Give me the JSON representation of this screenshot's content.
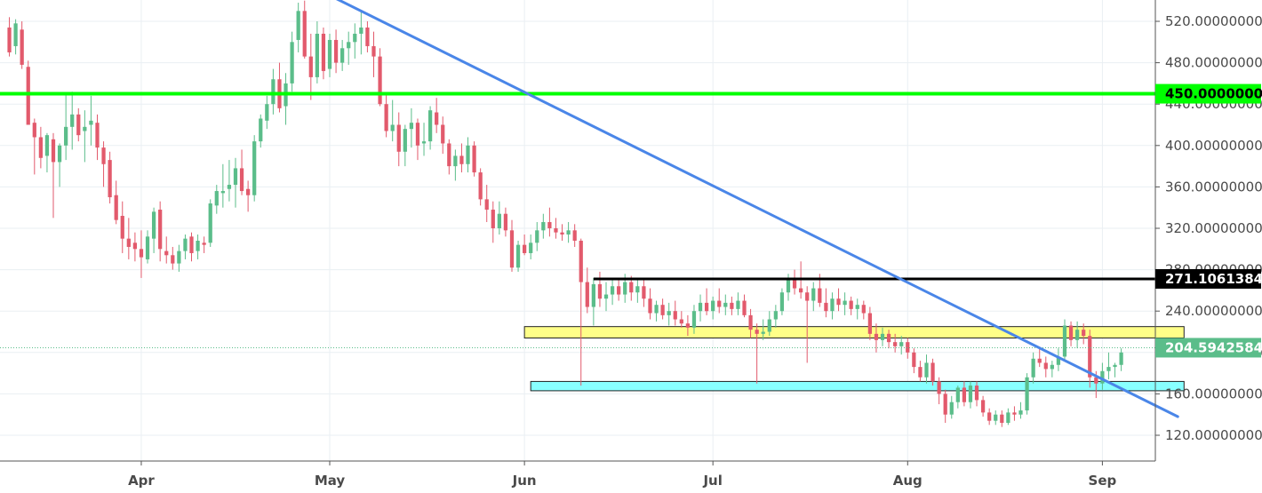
{
  "chart_data": {
    "type": "candlestick",
    "title": "",
    "xlabel": "",
    "ylabel": "",
    "ylim": [
      100,
      537
    ],
    "y_ticks": [
      "120.00000000",
      "160.00000000",
      "200.00000000",
      "240.00000000",
      "280.00000000",
      "320.00000000",
      "360.00000000",
      "400.00000000",
      "440.00000000",
      "480.00000000",
      "520.00000000"
    ],
    "y_tick_values": [
      120,
      160,
      200,
      240,
      280,
      320,
      360,
      400,
      440,
      480,
      520
    ],
    "x_ticks": [
      {
        "label": "Apr",
        "day": 31
      },
      {
        "label": "May",
        "day": 61
      },
      {
        "label": "Jun",
        "day": 92
      },
      {
        "label": "Jul",
        "day": 122
      },
      {
        "label": "Aug",
        "day": 153
      },
      {
        "label": "Sep",
        "day": 184
      }
    ],
    "x_range_days": [
      9.5,
      198
    ],
    "grid": true,
    "colors": {
      "up": "#5bbd8a",
      "down": "#e25a6c",
      "grid": "#eaeff3",
      "trendline": "#4a86e8",
      "resistance_line": "#00ff00",
      "level_line": "#000000",
      "zone_yellow": "#ffff88",
      "zone_cyan": "#88ffff",
      "price_tag": "#5bbd8a"
    },
    "price_labels": {
      "horizontal_450": "450.00000000",
      "horizontal_271": "271.10613846",
      "current_price": "204.59425844"
    },
    "levels": {
      "horizontal_450": 450,
      "horizontal_271": 271.106,
      "current_price": 204.594
    },
    "trendline": {
      "start": {
        "day": 62,
        "value": 542
      },
      "end": {
        "day": 196,
        "value": 138
      }
    },
    "horizontal_271_start_day": 103,
    "zones": [
      {
        "name": "yellow-zone",
        "from_day": 92,
        "to_day": 197,
        "low": 214,
        "high": 225
      },
      {
        "name": "cyan-zone",
        "from_day": 93,
        "to_day": 197,
        "low": 163,
        "high": 172
      }
    ],
    "candles": [
      [
        10,
        514,
        524,
        486,
        490
      ],
      [
        11,
        496,
        522,
        488,
        518
      ],
      [
        12,
        512,
        520,
        474,
        478
      ],
      [
        13,
        476,
        482,
        420,
        420
      ],
      [
        14,
        422,
        426,
        372,
        408
      ],
      [
        15,
        408,
        418,
        378,
        388
      ],
      [
        16,
        390,
        412,
        374,
        410
      ],
      [
        17,
        406,
        412,
        330,
        384
      ],
      [
        18,
        384,
        402,
        360,
        400
      ],
      [
        19,
        400,
        450,
        386,
        418
      ],
      [
        20,
        418,
        452,
        396,
        430
      ],
      [
        21,
        430,
        436,
        404,
        410
      ],
      [
        22,
        414,
        434,
        384,
        418
      ],
      [
        23,
        420,
        448,
        400,
        424
      ],
      [
        24,
        422,
        430,
        386,
        398
      ],
      [
        25,
        398,
        404,
        360,
        382
      ],
      [
        26,
        386,
        394,
        344,
        350
      ],
      [
        27,
        352,
        366,
        324,
        328
      ],
      [
        28,
        332,
        346,
        296,
        310
      ],
      [
        29,
        310,
        330,
        290,
        302
      ],
      [
        30,
        306,
        316,
        288,
        300
      ],
      [
        31,
        300,
        318,
        272,
        292
      ],
      [
        32,
        290,
        318,
        286,
        312
      ],
      [
        33,
        310,
        340,
        296,
        336
      ],
      [
        34,
        338,
        346,
        288,
        300
      ],
      [
        35,
        298,
        312,
        286,
        294
      ],
      [
        36,
        294,
        302,
        280,
        286
      ],
      [
        37,
        286,
        304,
        278,
        298
      ],
      [
        38,
        298,
        314,
        290,
        310
      ],
      [
        39,
        312,
        316,
        288,
        296
      ],
      [
        40,
        298,
        314,
        290,
        308
      ],
      [
        41,
        306,
        312,
        296,
        304
      ],
      [
        42,
        306,
        348,
        302,
        344
      ],
      [
        43,
        342,
        362,
        334,
        356
      ],
      [
        44,
        354,
        382,
        340,
        356
      ],
      [
        45,
        358,
        386,
        346,
        362
      ],
      [
        46,
        362,
        388,
        340,
        378
      ],
      [
        47,
        378,
        396,
        352,
        356
      ],
      [
        48,
        358,
        366,
        336,
        352
      ],
      [
        49,
        352,
        410,
        346,
        404
      ],
      [
        50,
        404,
        430,
        398,
        426
      ],
      [
        51,
        424,
        448,
        416,
        440
      ],
      [
        52,
        440,
        474,
        430,
        464
      ],
      [
        53,
        464,
        480,
        432,
        436
      ],
      [
        54,
        438,
        470,
        420,
        460
      ],
      [
        55,
        460,
        510,
        452,
        500
      ],
      [
        56,
        502,
        538,
        490,
        530
      ],
      [
        57,
        530,
        540,
        484,
        486
      ],
      [
        58,
        486,
        508,
        444,
        466
      ],
      [
        59,
        466,
        520,
        460,
        508
      ],
      [
        60,
        508,
        514,
        464,
        472
      ],
      [
        61,
        474,
        508,
        466,
        502
      ],
      [
        62,
        502,
        512,
        470,
        480
      ],
      [
        63,
        480,
        502,
        472,
        494
      ],
      [
        64,
        494,
        510,
        478,
        500
      ],
      [
        65,
        500,
        518,
        484,
        508
      ],
      [
        66,
        508,
        530,
        488,
        514
      ],
      [
        67,
        514,
        520,
        490,
        496
      ],
      [
        68,
        496,
        510,
        466,
        486
      ],
      [
        69,
        486,
        494,
        438,
        440
      ],
      [
        70,
        440,
        450,
        408,
        414
      ],
      [
        71,
        414,
        444,
        404,
        420
      ],
      [
        72,
        420,
        432,
        380,
        394
      ],
      [
        73,
        394,
        420,
        380,
        416
      ],
      [
        74,
        416,
        436,
        398,
        422
      ],
      [
        75,
        422,
        426,
        386,
        400
      ],
      [
        76,
        402,
        422,
        390,
        404
      ],
      [
        77,
        404,
        438,
        396,
        434
      ],
      [
        78,
        432,
        446,
        412,
        420
      ],
      [
        79,
        420,
        428,
        392,
        402
      ],
      [
        80,
        402,
        406,
        372,
        380
      ],
      [
        81,
        380,
        396,
        366,
        390
      ],
      [
        82,
        390,
        402,
        374,
        382
      ],
      [
        83,
        382,
        408,
        374,
        400
      ],
      [
        84,
        400,
        404,
        370,
        374
      ],
      [
        85,
        374,
        378,
        342,
        348
      ],
      [
        86,
        348,
        362,
        326,
        338
      ],
      [
        87,
        338,
        346,
        306,
        320
      ],
      [
        88,
        320,
        346,
        314,
        334
      ],
      [
        89,
        334,
        340,
        312,
        318
      ],
      [
        90,
        318,
        328,
        278,
        282
      ],
      [
        91,
        282,
        308,
        278,
        304
      ],
      [
        92,
        304,
        314,
        294,
        296
      ],
      [
        93,
        296,
        314,
        290,
        306
      ],
      [
        94,
        306,
        326,
        298,
        318
      ],
      [
        95,
        318,
        334,
        310,
        326
      ],
      [
        96,
        326,
        340,
        312,
        320
      ],
      [
        97,
        320,
        330,
        310,
        316
      ],
      [
        98,
        316,
        324,
        308,
        314
      ],
      [
        99,
        314,
        326,
        306,
        318
      ],
      [
        100,
        318,
        324,
        302,
        308
      ],
      [
        101,
        308,
        310,
        168,
        268
      ],
      [
        102,
        268,
        282,
        238,
        244
      ],
      [
        103,
        244,
        272,
        226,
        266
      ],
      [
        104,
        266,
        278,
        244,
        252
      ],
      [
        105,
        252,
        268,
        240,
        256
      ],
      [
        106,
        256,
        272,
        246,
        264
      ],
      [
        107,
        264,
        270,
        250,
        256
      ],
      [
        108,
        256,
        276,
        248,
        268
      ],
      [
        109,
        268,
        274,
        250,
        258
      ],
      [
        110,
        258,
        270,
        248,
        264
      ],
      [
        111,
        264,
        270,
        244,
        252
      ],
      [
        112,
        252,
        262,
        232,
        238
      ],
      [
        113,
        238,
        250,
        230,
        246
      ],
      [
        114,
        246,
        252,
        232,
        236
      ],
      [
        115,
        236,
        248,
        226,
        240
      ],
      [
        116,
        240,
        250,
        226,
        232
      ],
      [
        117,
        232,
        240,
        224,
        228
      ],
      [
        118,
        228,
        236,
        216,
        224
      ],
      [
        119,
        224,
        246,
        218,
        240
      ],
      [
        120,
        240,
        256,
        230,
        248
      ],
      [
        121,
        248,
        262,
        236,
        240
      ],
      [
        122,
        240,
        254,
        232,
        250
      ],
      [
        123,
        250,
        262,
        238,
        244
      ],
      [
        124,
        244,
        256,
        236,
        248
      ],
      [
        125,
        248,
        254,
        236,
        242
      ],
      [
        126,
        242,
        258,
        236,
        250
      ],
      [
        127,
        250,
        256,
        234,
        236
      ],
      [
        128,
        236,
        242,
        214,
        222
      ],
      [
        129,
        222,
        228,
        170,
        218
      ],
      [
        130,
        218,
        232,
        212,
        220
      ],
      [
        131,
        220,
        240,
        216,
        232
      ],
      [
        132,
        232,
        246,
        224,
        240
      ],
      [
        133,
        240,
        262,
        236,
        258
      ],
      [
        134,
        258,
        276,
        250,
        270
      ],
      [
        135,
        270,
        280,
        256,
        262
      ],
      [
        136,
        262,
        288,
        252,
        258
      ],
      [
        137,
        258,
        264,
        190,
        250
      ],
      [
        138,
        250,
        268,
        240,
        262
      ],
      [
        139,
        262,
        276,
        244,
        248
      ],
      [
        140,
        248,
        262,
        234,
        240
      ],
      [
        141,
        240,
        258,
        232,
        252
      ],
      [
        142,
        252,
        262,
        240,
        246
      ],
      [
        143,
        246,
        258,
        236,
        250
      ],
      [
        144,
        250,
        254,
        236,
        242
      ],
      [
        145,
        242,
        252,
        232,
        246
      ],
      [
        146,
        246,
        250,
        232,
        238
      ],
      [
        147,
        238,
        244,
        212,
        218
      ],
      [
        148,
        218,
        228,
        200,
        212
      ],
      [
        149,
        212,
        224,
        206,
        218
      ],
      [
        150,
        218,
        222,
        204,
        210
      ],
      [
        151,
        210,
        218,
        200,
        206
      ],
      [
        152,
        206,
        216,
        198,
        210
      ],
      [
        153,
        210,
        214,
        194,
        200
      ],
      [
        154,
        200,
        204,
        180,
        186
      ],
      [
        155,
        186,
        192,
        172,
        176
      ],
      [
        156,
        176,
        198,
        170,
        190
      ],
      [
        157,
        190,
        194,
        168,
        172
      ],
      [
        158,
        172,
        176,
        150,
        160
      ],
      [
        159,
        160,
        164,
        132,
        140
      ],
      [
        160,
        140,
        158,
        136,
        152
      ],
      [
        161,
        152,
        168,
        146,
        166
      ],
      [
        162,
        166,
        172,
        148,
        152
      ],
      [
        163,
        152,
        172,
        146,
        168
      ],
      [
        164,
        168,
        172,
        148,
        154
      ],
      [
        165,
        154,
        158,
        138,
        142
      ],
      [
        166,
        142,
        146,
        130,
        134
      ],
      [
        167,
        134,
        144,
        130,
        140
      ],
      [
        168,
        140,
        144,
        128,
        132
      ],
      [
        169,
        132,
        146,
        130,
        142
      ],
      [
        170,
        142,
        148,
        134,
        140
      ],
      [
        171,
        140,
        152,
        136,
        144
      ],
      [
        172,
        144,
        180,
        140,
        176
      ],
      [
        173,
        176,
        200,
        170,
        194
      ],
      [
        174,
        194,
        204,
        186,
        190
      ],
      [
        175,
        190,
        196,
        176,
        184
      ],
      [
        176,
        184,
        192,
        176,
        188
      ],
      [
        177,
        188,
        204,
        182,
        196
      ],
      [
        178,
        196,
        232,
        192,
        226
      ],
      [
        179,
        226,
        230,
        206,
        212
      ],
      [
        180,
        212,
        230,
        204,
        222
      ],
      [
        181,
        222,
        228,
        208,
        216
      ],
      [
        182,
        216,
        222,
        166,
        176
      ],
      [
        183,
        176,
        182,
        156,
        170
      ],
      [
        184,
        170,
        190,
        164,
        182
      ],
      [
        185,
        182,
        200,
        174,
        186
      ],
      [
        186,
        186,
        190,
        176,
        188
      ],
      [
        187,
        188,
        204,
        182,
        200
      ]
    ]
  }
}
